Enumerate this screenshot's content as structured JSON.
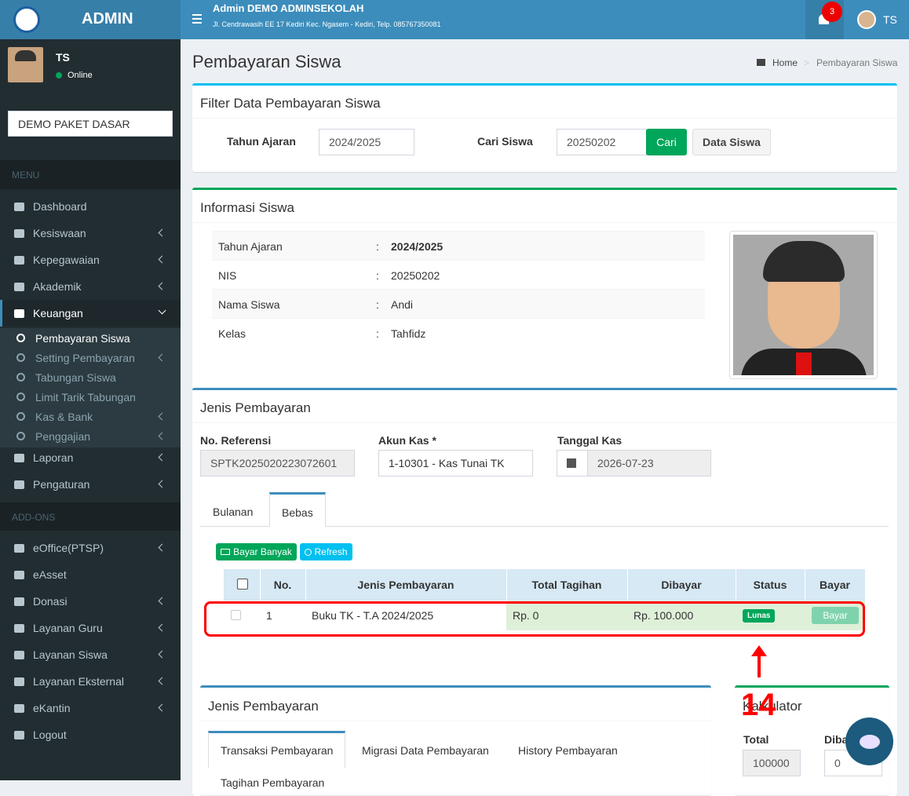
{
  "brand": "ADMIN",
  "topbar": {
    "title": "Admin DEMO ADMINSEKOLAH",
    "address": "Jl. Cendrawasih EE 17 Kediri Kec. Ngasem - Kediri, Telp. 085767350081",
    "notifications": "3",
    "user": "TS"
  },
  "sidebar": {
    "user": "TS",
    "status": "Online",
    "package": "DEMO PAKET DASAR",
    "menu_header": "MENU",
    "menu": [
      "Dashboard",
      "Kesiswaan",
      "Kepegawaian",
      "Akademik",
      "Keuangan"
    ],
    "submenu": [
      "Pembayaran Siswa",
      "Setting Pembayaran",
      "Tabungan Siswa",
      "Limit Tarik Tabungan",
      "Kas & Bank",
      "Penggajian"
    ],
    "menu_after": [
      "Laporan",
      "Pengaturan"
    ],
    "addons_header": "ADD-ONS",
    "addons": [
      "eOffice(PTSP)",
      "eAsset",
      "Donasi",
      "Layanan Guru",
      "Layanan Siswa",
      "Layanan Eksternal",
      "eKantin",
      "Logout"
    ]
  },
  "page": {
    "title": "Pembayaran Siswa",
    "breadcrumb": [
      "Home",
      "Pembayaran Siswa"
    ]
  },
  "filter": {
    "title": "Filter Data Pembayaran Siswa",
    "year_label": "Tahun Ajaran",
    "year": "2024/2025",
    "search_label": "Cari Siswa",
    "search": "20250202",
    "search_button": "Cari",
    "students_button": "Data Siswa"
  },
  "info": {
    "title": "Informasi Siswa",
    "rows": [
      [
        "Tahun Ajaran",
        ":",
        "2024/2025"
      ],
      [
        "NIS",
        ":",
        "20250202"
      ],
      [
        "Nama Siswa",
        ":",
        "Andi"
      ],
      [
        "Kelas",
        ":",
        "Tahfidz"
      ]
    ]
  },
  "payment": {
    "title": "Jenis Pembayaran",
    "ref_label": "No. Referensi",
    "ref": "SPTK2025020223072601",
    "account_label": "Akun Kas *",
    "account": "1-10301 - Kas Tunai TK",
    "date_label": "Tanggal Kas",
    "date": "2026-07-23",
    "tabs": [
      "Bulanan",
      "Bebas"
    ],
    "bulk_button": "Bayar Banyak",
    "refresh_button": "Refresh"
  },
  "table": {
    "headers": [
      "No.",
      "Jenis Pembayaran",
      "Total Tagihan",
      "Dibayar",
      "Status",
      "Bayar"
    ],
    "rows": [
      [
        "1",
        "Buku TK - T.A 2024/2025",
        "Rp. 0",
        "Rp. 100.000",
        "Lunas",
        "Bayar"
      ]
    ]
  },
  "annotation": "14",
  "lower": {
    "title": "Jenis Pembayaran",
    "tabs": [
      "Transaksi Pembayaran",
      "Migrasi Data Pembayaran",
      "History Pembayaran",
      "Tagihan Pembayaran"
    ]
  },
  "calculator": {
    "title": "Kalkulator",
    "total_label": "Total",
    "total": "100000",
    "paid_label": "Dibayar",
    "paid": "0"
  }
}
